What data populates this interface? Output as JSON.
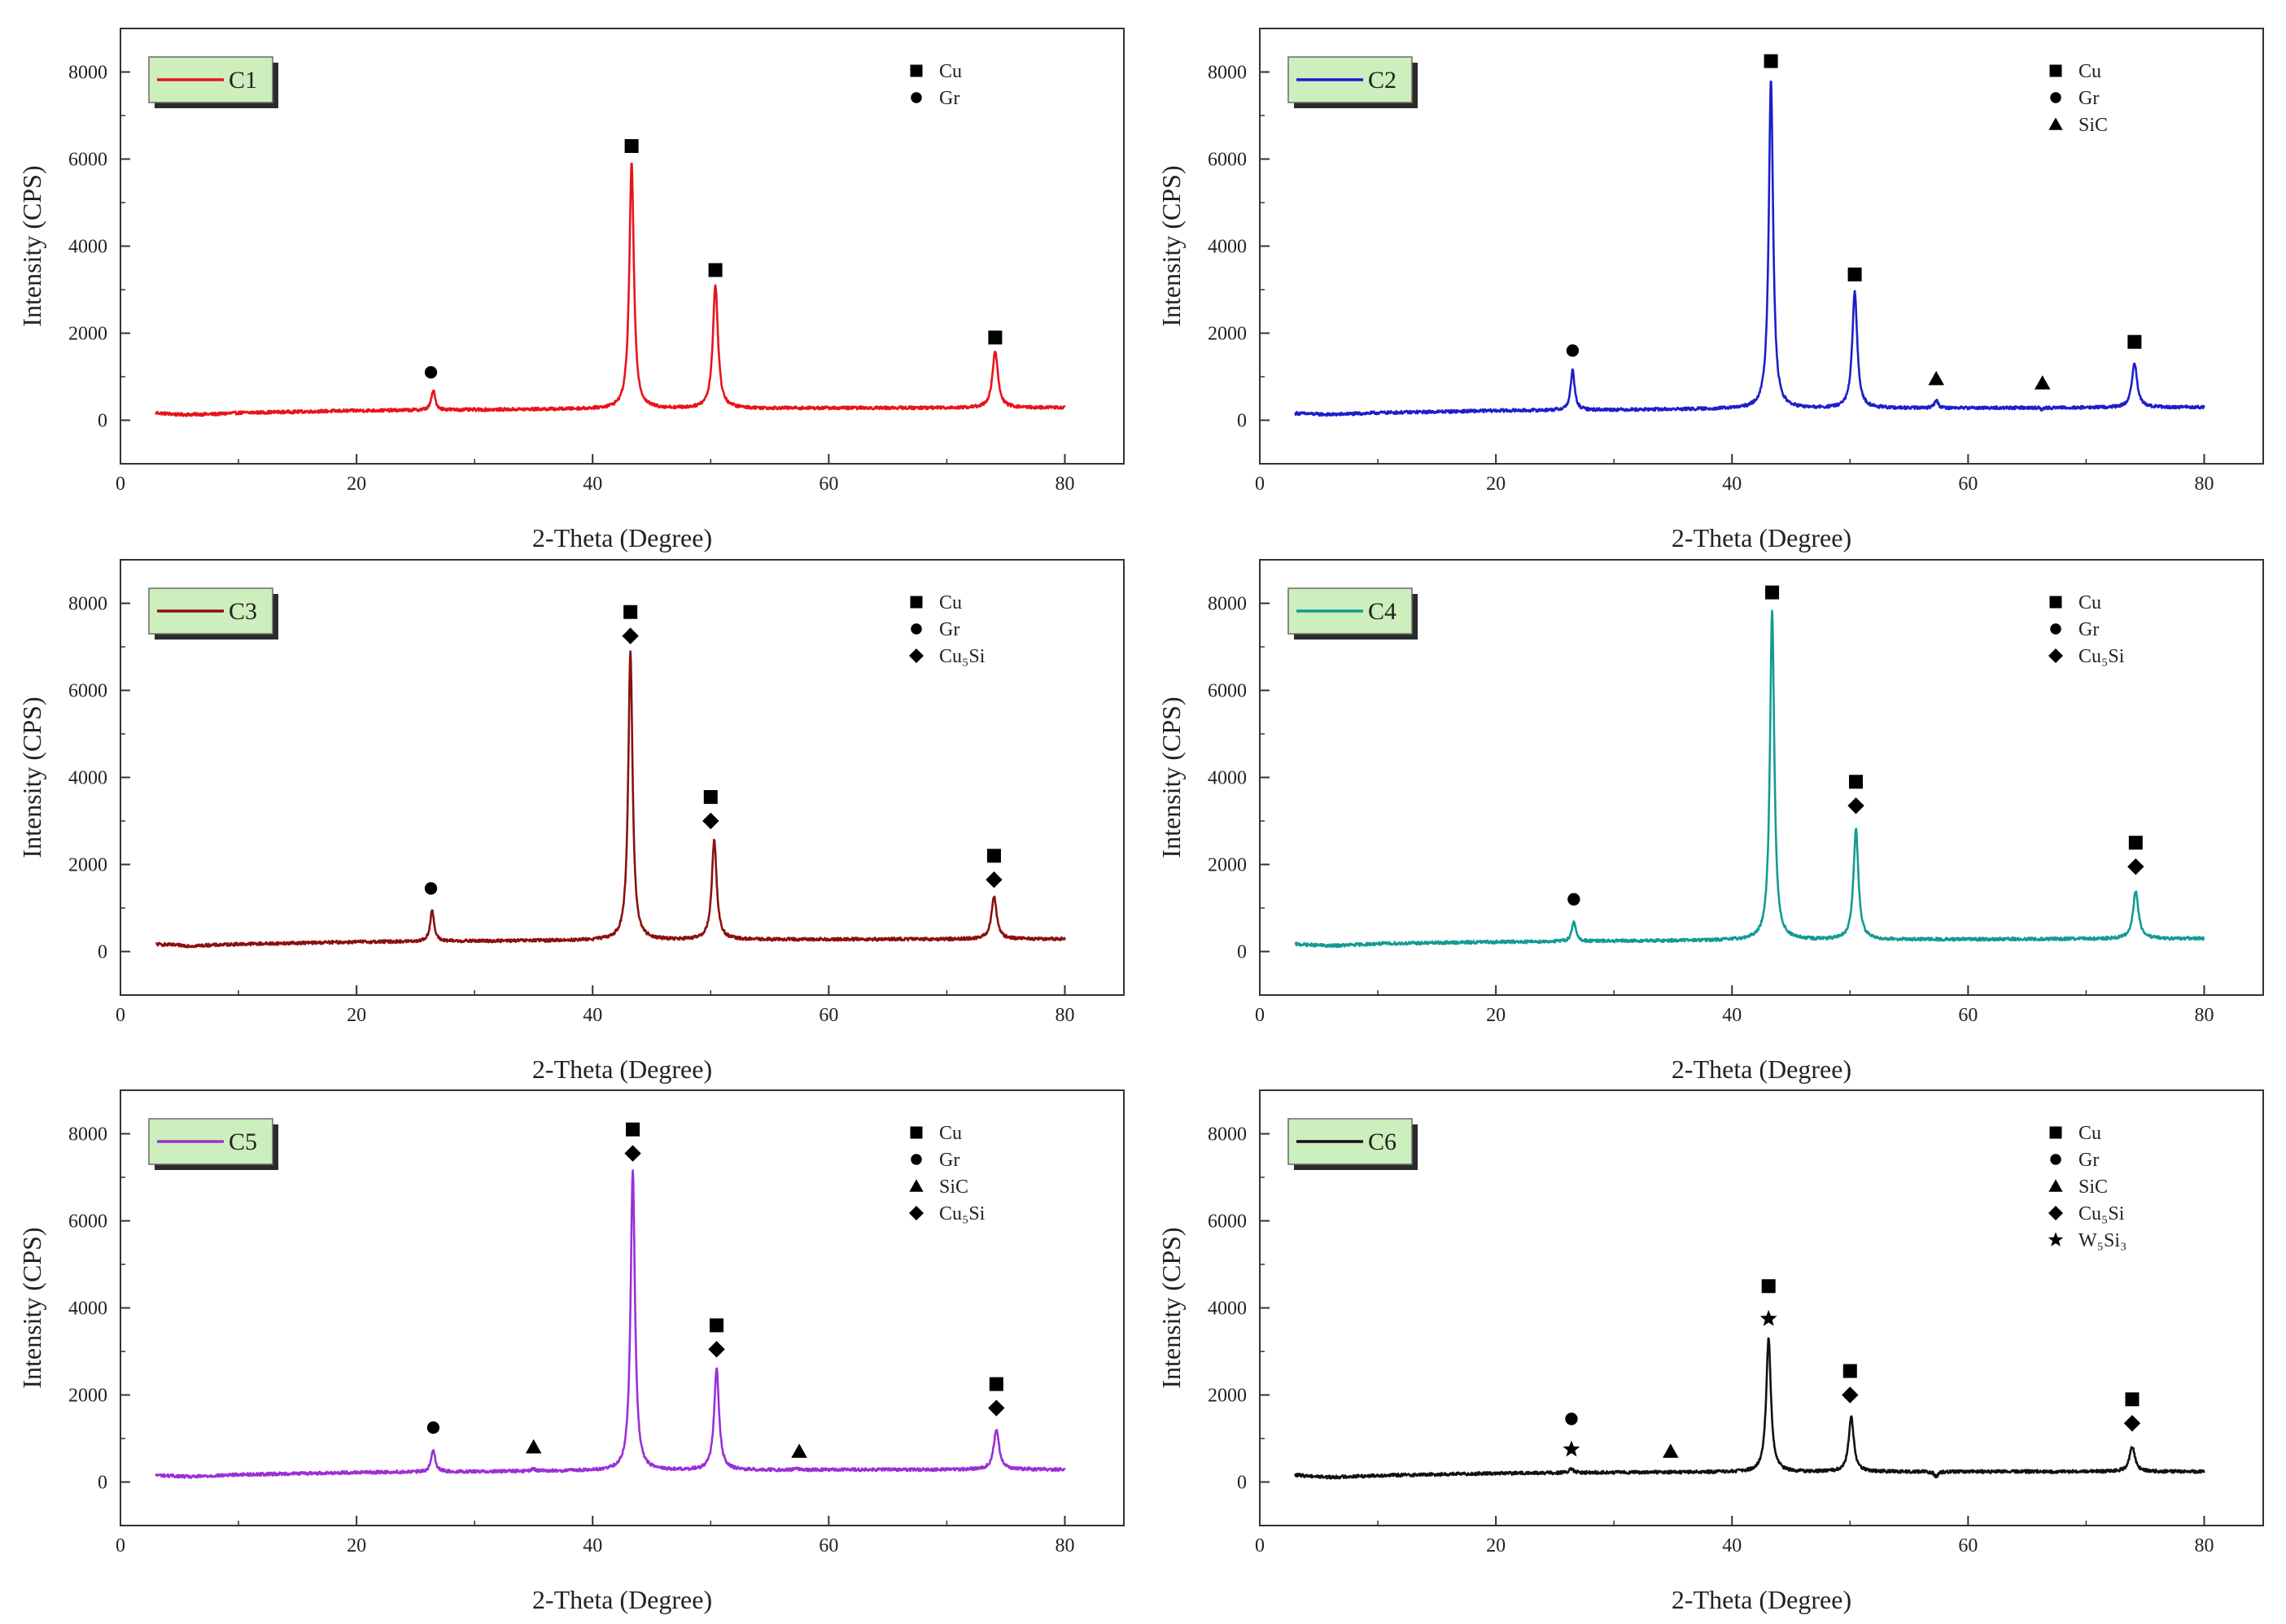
{
  "figure": {
    "panel_order": [
      "C1",
      "C2",
      "C3",
      "C4",
      "C5",
      "C6"
    ]
  },
  "chart_data": [
    {
      "type": "line",
      "panel_label": "C1",
      "color": "#e8141b",
      "xlabel": "2-Theta (Degree)",
      "ylabel": "Intensity (CPS)",
      "xlim": [
        0,
        85
      ],
      "ylim": [
        -1000,
        9000
      ],
      "xticks": [
        0,
        20,
        40,
        60,
        80
      ],
      "yticks": [
        0,
        2000,
        4000,
        6000,
        8000
      ],
      "series": [
        {
          "name": "C1",
          "baseline": [
            [
              3,
              170
            ],
            [
              5,
              130
            ],
            [
              8,
              140
            ],
            [
              10,
              170
            ],
            [
              20,
              220
            ],
            [
              30,
              240
            ],
            [
              40,
              260
            ],
            [
              60,
              280
            ],
            [
              80,
              290
            ]
          ],
          "peaks": [
            {
              "x": 26.5,
              "y": 680,
              "w": 0.2
            },
            {
              "x": 43.3,
              "y": 5900,
              "w": 0.23
            },
            {
              "x": 50.4,
              "y": 3100,
              "w": 0.26
            },
            {
              "x": 74.1,
              "y": 1580,
              "w": 0.28
            }
          ]
        }
      ],
      "legend": [
        {
          "marker": "square",
          "label": "Cu"
        },
        {
          "marker": "circle",
          "label": "Gr"
        }
      ],
      "markers": [
        {
          "x": 26.3,
          "y": 1100,
          "marker": "circle"
        },
        {
          "x": 43.3,
          "y": 6300,
          "marker": "square"
        },
        {
          "x": 50.4,
          "y": 3450,
          "marker": "square"
        },
        {
          "x": 74.1,
          "y": 1900,
          "marker": "square"
        }
      ]
    },
    {
      "type": "line",
      "panel_label": "C2",
      "color": "#1c1fc8",
      "xlabel": "2-Theta (Degree)",
      "ylabel": "Intensity (CPS)",
      "xlim": [
        0,
        85
      ],
      "ylim": [
        -1000,
        9000
      ],
      "xticks": [
        0,
        20,
        40,
        60,
        80
      ],
      "yticks": [
        0,
        2000,
        4000,
        6000,
        8000
      ],
      "series": [
        {
          "name": "C2",
          "baseline": [
            [
              3,
              160
            ],
            [
              6,
              130
            ],
            [
              10,
              170
            ],
            [
              20,
              220
            ],
            [
              30,
              240
            ],
            [
              40,
              260
            ],
            [
              60,
              280
            ],
            [
              80,
              300
            ]
          ],
          "peaks": [
            {
              "x": 26.5,
              "y": 1150,
              "w": 0.2
            },
            {
              "x": 43.3,
              "y": 7850,
              "w": 0.22
            },
            {
              "x": 50.4,
              "y": 2950,
              "w": 0.25
            },
            {
              "x": 57.3,
              "y": 450,
              "w": 0.2
            },
            {
              "x": 66.3,
              "y": 250,
              "w": 0.2
            },
            {
              "x": 74.1,
              "y": 1300,
              "w": 0.27
            }
          ]
        }
      ],
      "legend": [
        {
          "marker": "square",
          "label": "Cu"
        },
        {
          "marker": "circle",
          "label": "Gr"
        },
        {
          "marker": "triangle",
          "label": "SiC"
        }
      ],
      "markers": [
        {
          "x": 26.5,
          "y": 1600,
          "marker": "circle"
        },
        {
          "x": 43.3,
          "y": 8250,
          "marker": "square"
        },
        {
          "x": 50.4,
          "y": 3350,
          "marker": "square"
        },
        {
          "x": 57.3,
          "y": 950,
          "marker": "triangle"
        },
        {
          "x": 66.3,
          "y": 850,
          "marker": "triangle"
        },
        {
          "x": 74.1,
          "y": 1800,
          "marker": "square"
        }
      ]
    },
    {
      "type": "line",
      "panel_label": "C3",
      "color": "#8b1010",
      "xlabel": "2-Theta (Degree)",
      "ylabel": "Intensity (CPS)",
      "xlim": [
        0,
        85
      ],
      "ylim": [
        -1000,
        9000
      ],
      "xticks": [
        0,
        20,
        40,
        60,
        80
      ],
      "yticks": [
        0,
        2000,
        4000,
        6000,
        8000
      ],
      "series": [
        {
          "name": "C3",
          "baseline": [
            [
              3,
              170
            ],
            [
              6,
              130
            ],
            [
              10,
              170
            ],
            [
              20,
              220
            ],
            [
              30,
              240
            ],
            [
              40,
              260
            ],
            [
              60,
              280
            ],
            [
              80,
              290
            ]
          ],
          "peaks": [
            {
              "x": 26.4,
              "y": 950,
              "w": 0.2
            },
            {
              "x": 43.2,
              "y": 6900,
              "w": 0.22
            },
            {
              "x": 50.3,
              "y": 2550,
              "w": 0.25
            },
            {
              "x": 74.0,
              "y": 1250,
              "w": 0.27
            }
          ]
        }
      ],
      "legend": [
        {
          "marker": "square",
          "label": "Cu"
        },
        {
          "marker": "circle",
          "label": "Gr"
        },
        {
          "marker": "diamond",
          "label": "Cu₅Si"
        }
      ],
      "markers": [
        {
          "x": 26.3,
          "y": 1450,
          "marker": "circle"
        },
        {
          "x": 43.2,
          "y": 7800,
          "marker": "square"
        },
        {
          "x": 43.2,
          "y": 7250,
          "marker": "diamond"
        },
        {
          "x": 50.0,
          "y": 3550,
          "marker": "square"
        },
        {
          "x": 50.0,
          "y": 3000,
          "marker": "diamond"
        },
        {
          "x": 74.0,
          "y": 2200,
          "marker": "square"
        },
        {
          "x": 74.0,
          "y": 1650,
          "marker": "diamond"
        }
      ]
    },
    {
      "type": "line",
      "panel_label": "C4",
      "color": "#139b92",
      "xlabel": "2-Theta (Degree)",
      "ylabel": "Intensity (CPS)",
      "xlim": [
        0,
        85
      ],
      "ylim": [
        -1000,
        9000
      ],
      "xticks": [
        0,
        20,
        40,
        60,
        80
      ],
      "yticks": [
        0,
        2000,
        4000,
        6000,
        8000
      ],
      "series": [
        {
          "name": "C4",
          "baseline": [
            [
              3,
              170
            ],
            [
              6,
              130
            ],
            [
              10,
              180
            ],
            [
              20,
              220
            ],
            [
              30,
              240
            ],
            [
              40,
              260
            ],
            [
              60,
              280
            ],
            [
              80,
              300
            ]
          ],
          "peaks": [
            {
              "x": 26.6,
              "y": 700,
              "w": 0.2
            },
            {
              "x": 43.4,
              "y": 7800,
              "w": 0.22
            },
            {
              "x": 50.5,
              "y": 2800,
              "w": 0.25
            },
            {
              "x": 74.2,
              "y": 1380,
              "w": 0.28
            }
          ]
        }
      ],
      "legend": [
        {
          "marker": "square",
          "label": "Cu"
        },
        {
          "marker": "circle",
          "label": "Gr"
        },
        {
          "marker": "diamond",
          "label": "Cu₅Si"
        }
      ],
      "markers": [
        {
          "x": 26.6,
          "y": 1200,
          "marker": "circle"
        },
        {
          "x": 43.4,
          "y": 8250,
          "marker": "square"
        },
        {
          "x": 50.5,
          "y": 3900,
          "marker": "square"
        },
        {
          "x": 50.5,
          "y": 3350,
          "marker": "diamond"
        },
        {
          "x": 74.2,
          "y": 2500,
          "marker": "square"
        },
        {
          "x": 74.2,
          "y": 1950,
          "marker": "diamond"
        }
      ]
    },
    {
      "type": "line",
      "panel_label": "C5",
      "color": "#9b2fd6",
      "xlabel": "2-Theta (Degree)",
      "ylabel": "Intensity (CPS)",
      "xlim": [
        0,
        85
      ],
      "ylim": [
        -1000,
        9000
      ],
      "xticks": [
        0,
        20,
        40,
        60,
        80
      ],
      "yticks": [
        0,
        2000,
        4000,
        6000,
        8000
      ],
      "series": [
        {
          "name": "C5",
          "baseline": [
            [
              3,
              160
            ],
            [
              6,
              120
            ],
            [
              10,
              170
            ],
            [
              20,
              220
            ],
            [
              30,
              240
            ],
            [
              40,
              260
            ],
            [
              60,
              280
            ],
            [
              80,
              290
            ]
          ],
          "peaks": [
            {
              "x": 26.5,
              "y": 750,
              "w": 0.2
            },
            {
              "x": 35.0,
              "y": 300,
              "w": 0.18
            },
            {
              "x": 43.4,
              "y": 7150,
              "w": 0.22
            },
            {
              "x": 50.5,
              "y": 2600,
              "w": 0.25
            },
            {
              "x": 57.3,
              "y": 300,
              "w": 0.18
            },
            {
              "x": 74.2,
              "y": 1220,
              "w": 0.27
            }
          ]
        }
      ],
      "legend": [
        {
          "marker": "square",
          "label": "Cu"
        },
        {
          "marker": "circle",
          "label": "Gr"
        },
        {
          "marker": "triangle",
          "label": "SiC"
        },
        {
          "marker": "diamond",
          "label": "Cu₅Si"
        }
      ],
      "markers": [
        {
          "x": 26.5,
          "y": 1250,
          "marker": "circle"
        },
        {
          "x": 35.0,
          "y": 800,
          "marker": "triangle"
        },
        {
          "x": 43.4,
          "y": 8100,
          "marker": "square"
        },
        {
          "x": 43.4,
          "y": 7550,
          "marker": "diamond"
        },
        {
          "x": 50.5,
          "y": 3600,
          "marker": "square"
        },
        {
          "x": 50.5,
          "y": 3050,
          "marker": "diamond"
        },
        {
          "x": 57.5,
          "y": 700,
          "marker": "triangle"
        },
        {
          "x": 74.2,
          "y": 2250,
          "marker": "square"
        },
        {
          "x": 74.2,
          "y": 1700,
          "marker": "diamond"
        }
      ]
    },
    {
      "type": "line",
      "panel_label": "C6",
      "color": "#111111",
      "xlabel": "2-Theta (Degree)",
      "ylabel": "Intensity (CPS)",
      "xlim": [
        0,
        85
      ],
      "ylim": [
        -1000,
        9000
      ],
      "xticks": [
        0,
        20,
        40,
        60,
        80
      ],
      "yticks": [
        0,
        2000,
        4000,
        6000,
        8000
      ],
      "series": [
        {
          "name": "C6",
          "baseline": [
            [
              3,
              160
            ],
            [
              6,
              110
            ],
            [
              10,
              150
            ],
            [
              20,
              200
            ],
            [
              30,
              220
            ],
            [
              40,
              230
            ],
            [
              60,
              240
            ],
            [
              80,
              240
            ]
          ],
          "peaks": [
            {
              "x": 26.4,
              "y": 300,
              "w": 0.2
            },
            {
              "x": 43.1,
              "y": 3300,
              "w": 0.24
            },
            {
              "x": 50.1,
              "y": 1500,
              "w": 0.26
            },
            {
              "x": 57.3,
              "y": 120,
              "w": 0.2
            },
            {
              "x": 73.9,
              "y": 820,
              "w": 0.28
            }
          ]
        }
      ],
      "legend": [
        {
          "marker": "square",
          "label": "Cu"
        },
        {
          "marker": "circle",
          "label": "Gr"
        },
        {
          "marker": "triangle",
          "label": "SiC"
        },
        {
          "marker": "diamond",
          "label": "Cu₅Si"
        },
        {
          "marker": "star",
          "label": "W₅Si₃"
        }
      ],
      "markers": [
        {
          "x": 26.4,
          "y": 1450,
          "marker": "circle"
        },
        {
          "x": 26.4,
          "y": 750,
          "marker": "star"
        },
        {
          "x": 34.8,
          "y": 700,
          "marker": "triangle"
        },
        {
          "x": 43.1,
          "y": 4500,
          "marker": "square"
        },
        {
          "x": 43.1,
          "y": 3750,
          "marker": "star"
        },
        {
          "x": 50.0,
          "y": 2550,
          "marker": "square"
        },
        {
          "x": 50.0,
          "y": 2000,
          "marker": "diamond"
        },
        {
          "x": 73.9,
          "y": 1900,
          "marker": "square"
        },
        {
          "x": 73.9,
          "y": 1350,
          "marker": "diamond"
        }
      ]
    }
  ]
}
